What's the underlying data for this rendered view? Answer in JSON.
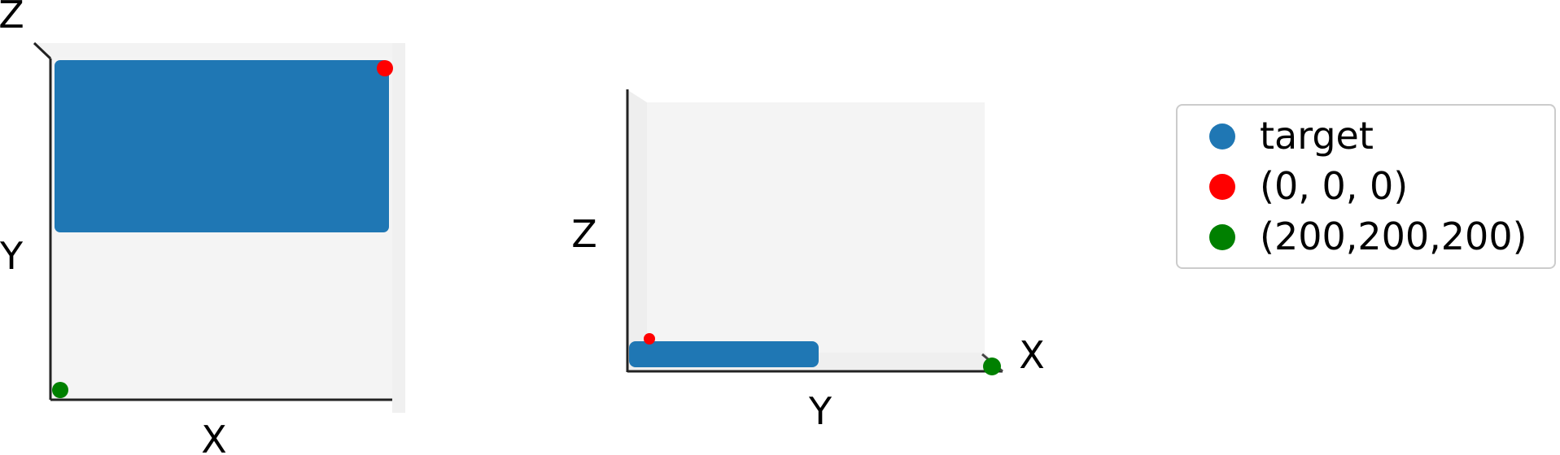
{
  "chart_data": [
    {
      "type": "scatter",
      "view": "top",
      "xlabel": "X",
      "ylabel": "Y",
      "zlabel": "Z",
      "series": [
        {
          "name": "target",
          "color": "#1f77b4",
          "points": [
            [
              0,
              0
            ],
            [
              200,
              100
            ]
          ]
        },
        {
          "name": "(0, 0, 0)",
          "color": "#ff0000",
          "points": [
            [
              0,
              0,
              0
            ]
          ]
        },
        {
          "name": "(200,200,200)",
          "color": "#008000",
          "points": [
            [
              200,
              200,
              200
            ]
          ]
        }
      ]
    },
    {
      "type": "scatter",
      "view": "side",
      "xlabel": "X",
      "ylabel": "Y",
      "zlabel": "Z",
      "series": [
        {
          "name": "target",
          "color": "#1f77b4"
        },
        {
          "name": "(0, 0, 0)",
          "color": "#ff0000"
        },
        {
          "name": "(200,200,200)",
          "color": "#008000"
        }
      ]
    }
  ],
  "legend": {
    "items": [
      {
        "label": "target",
        "color": "#1f77b4"
      },
      {
        "label": "(0, 0, 0)",
        "color": "#ff0000"
      },
      {
        "label": "(200,200,200)",
        "color": "#008000"
      }
    ]
  }
}
